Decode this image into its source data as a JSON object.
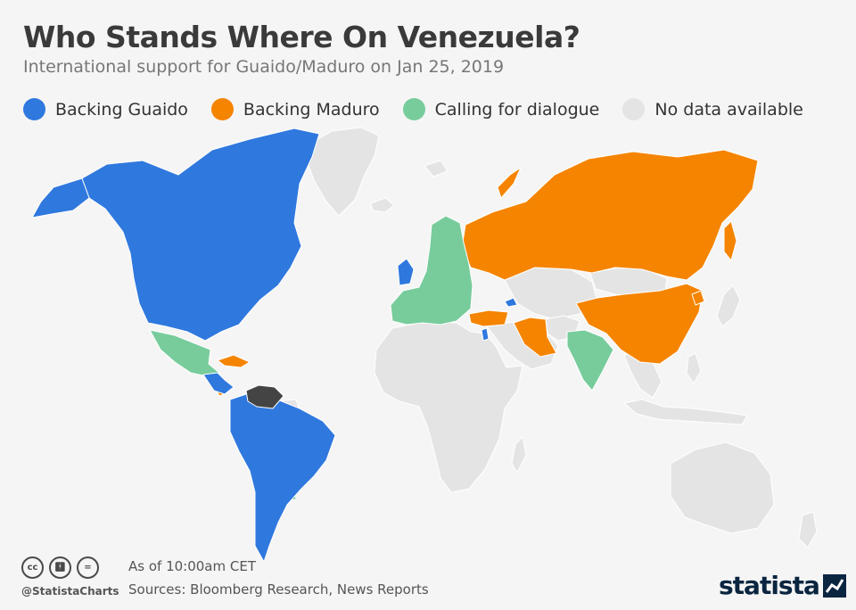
{
  "header": {
    "title": "Who Stands Where On Venezuela?",
    "subtitle": "International support for Guaido/Maduro on Jan 25, 2019"
  },
  "legend": [
    {
      "label": "Backing Guaido",
      "color": "#2f78de"
    },
    {
      "label": "Backing Maduro",
      "color": "#f58400"
    },
    {
      "label": "Calling for dialogue",
      "color": "#78cc9c"
    },
    {
      "label": "No data available",
      "color": "#e4e4e4"
    }
  ],
  "colors": {
    "background": "#f5f5f5",
    "venezuela": "#444444",
    "border": "#ffffff"
  },
  "footer": {
    "handle": "@StatistaCharts",
    "note": "As of 10:00am CET",
    "sources": "Sources: Bloomberg Research, News Reports",
    "brand": "statista",
    "icons": [
      "cc-icon",
      "attribution-icon",
      "no-derivatives-icon"
    ]
  }
}
